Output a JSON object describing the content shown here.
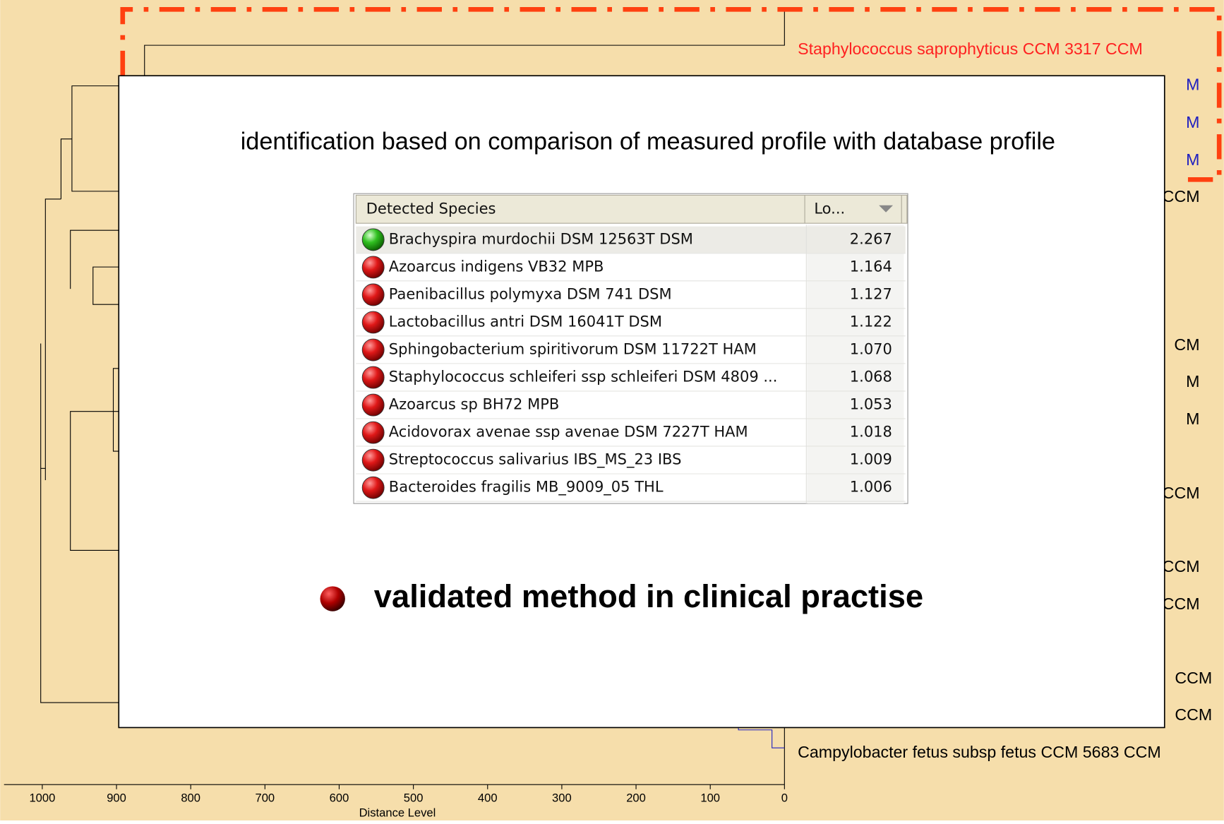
{
  "dendrogram": {
    "labels": [
      {
        "text": "Staphylococcus saprophyticus CCM 3317 CCM",
        "color": "#ff2020"
      },
      {
        "text": "M",
        "color": "#2020c0"
      },
      {
        "text": "M",
        "color": "#2020c0"
      },
      {
        "text": "M",
        "color": "#2020c0"
      },
      {
        "text": "CCM",
        "color": "#000000"
      },
      {
        "text": "CM",
        "color": "#000000"
      },
      {
        "text": "M",
        "color": "#000000"
      },
      {
        "text": "M",
        "color": "#000000"
      },
      {
        "text": "CCM",
        "color": "#000000"
      },
      {
        "text": "CCM",
        "color": "#000000"
      },
      {
        "text": "CCM",
        "color": "#000000"
      },
      {
        "text": "CCM",
        "color": "#000000"
      },
      {
        "text": "CCM",
        "color": "#000000"
      },
      {
        "text": "Campylobacter fetus subsp fetus CCM 5683 CCM",
        "color": "#000000"
      }
    ],
    "axis": {
      "label": "Distance Level",
      "ticks": [
        1000,
        900,
        800,
        700,
        600,
        500,
        400,
        300,
        200,
        100,
        0
      ]
    }
  },
  "overlay": {
    "heading": "identification based on comparison of measured profile with database profile",
    "table": {
      "headers": [
        "Detected Species",
        "Lo..."
      ],
      "rows": [
        [
          "Brachyspira murdochii DSM 12563T DSM",
          "2.267"
        ],
        [
          "Azoarcus indigens VB32 MPB",
          "1.164"
        ],
        [
          "Paenibacillus polymyxa DSM 741 DSM",
          "1.127"
        ],
        [
          "Lactobacillus antri DSM 16041T DSM",
          "1.122"
        ],
        [
          "Sphingobacterium spiritivorum DSM 11722T HAM",
          "1.070"
        ],
        [
          "Staphylococcus schleiferi ssp schleiferi DSM 4809 ...",
          "1.068"
        ],
        [
          "Azoarcus sp BH72 MPB",
          "1.053"
        ],
        [
          "Acidovorax avenae ssp avenae DSM 7227T HAM",
          "1.018"
        ],
        [
          "Streptococcus salivarius IBS_MS_23 IBS",
          "1.009"
        ],
        [
          "Bacteroides fragilis MB_9009_05 THL",
          "1.006"
        ]
      ]
    },
    "bullet": "validated method in clinical practise"
  }
}
